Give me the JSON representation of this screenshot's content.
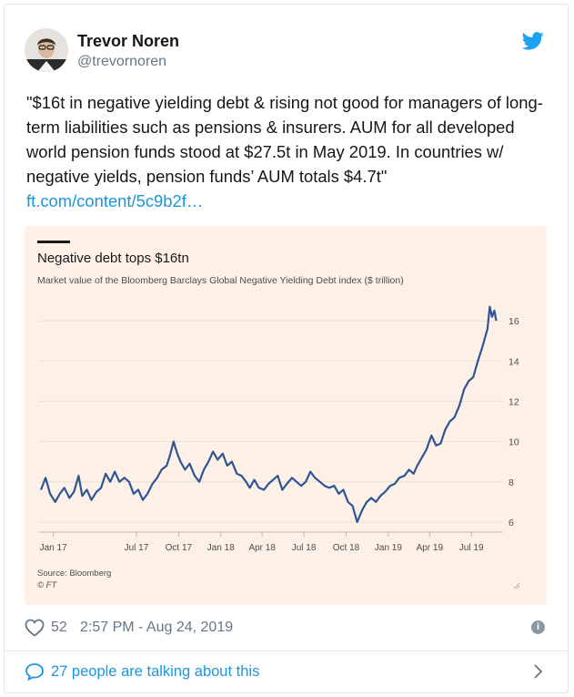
{
  "author": {
    "name": "Trevor Noren",
    "handle": "@trevornoren",
    "avatar_icon": "avatar-photo"
  },
  "tweet": {
    "text": "\"$16t in negative yielding debt & rising not good for managers of long-term liabilities such as pensions & insurers. AUM for all developed world pension funds stood at $27.5t in May 2019. In countries w/ negative yields, pension funds’ AUM totals $4.7t\"",
    "link": "ft.com/content/5c9b2f…"
  },
  "chart_data": {
    "type": "line",
    "title": "Negative debt tops $16tn",
    "subtitle": "Market value of the Bloomberg Barclays Global Negative Yielding Debt index ($ trillion)",
    "x_ticks": [
      "Jan 17",
      "Jul 17",
      "Oct 17",
      "Jan 18",
      "Apr 18",
      "Jul 18",
      "Oct 18",
      "Jan 19",
      "Apr 19",
      "Jul 19"
    ],
    "y_ticks": [
      6,
      8,
      10,
      12,
      14,
      16
    ],
    "ylim": [
      5.5,
      17
    ],
    "xlim": [
      "2016-12-01",
      "2019-08-31"
    ],
    "source": "Source: Bloomberg",
    "credit": "© FT",
    "line_color": "#2f5597",
    "series": [
      {
        "x": [
          "2016-12-05",
          "2016-12-15",
          "2016-12-25",
          "2017-01-05",
          "2017-01-15",
          "2017-01-25",
          "2017-02-05",
          "2017-02-15",
          "2017-02-25",
          "2017-03-05",
          "2017-03-15",
          "2017-03-25",
          "2017-04-05",
          "2017-04-15",
          "2017-04-25",
          "2017-05-05",
          "2017-05-15",
          "2017-05-25",
          "2017-06-05",
          "2017-06-15",
          "2017-06-25",
          "2017-07-05",
          "2017-07-15",
          "2017-07-25",
          "2017-08-05",
          "2017-08-15",
          "2017-08-25",
          "2017-09-05",
          "2017-09-12",
          "2017-09-20",
          "2017-09-28",
          "2017-10-05",
          "2017-10-15",
          "2017-10-25",
          "2017-11-05",
          "2017-11-15",
          "2017-11-25",
          "2017-12-05",
          "2017-12-15",
          "2017-12-25",
          "2018-01-05",
          "2018-01-15",
          "2018-01-25",
          "2018-02-05",
          "2018-02-15",
          "2018-02-25",
          "2018-03-05",
          "2018-03-15",
          "2018-03-25",
          "2018-04-05",
          "2018-04-15",
          "2018-04-25",
          "2018-05-05",
          "2018-05-15",
          "2018-05-25",
          "2018-06-05",
          "2018-06-15",
          "2018-06-25",
          "2018-07-05",
          "2018-07-15",
          "2018-07-25",
          "2018-08-05",
          "2018-08-15",
          "2018-08-25",
          "2018-09-05",
          "2018-09-15",
          "2018-09-25",
          "2018-10-05",
          "2018-10-15",
          "2018-10-25",
          "2018-11-05",
          "2018-11-15",
          "2018-11-25",
          "2018-12-05",
          "2018-12-15",
          "2018-12-25",
          "2019-01-05",
          "2019-01-15",
          "2019-01-25",
          "2019-02-05",
          "2019-02-15",
          "2019-02-25",
          "2019-03-05",
          "2019-03-15",
          "2019-03-25",
          "2019-04-05",
          "2019-04-15",
          "2019-04-25",
          "2019-05-05",
          "2019-05-15",
          "2019-05-25",
          "2019-06-05",
          "2019-06-15",
          "2019-06-25",
          "2019-07-05",
          "2019-07-15",
          "2019-07-25",
          "2019-08-05",
          "2019-08-10",
          "2019-08-15",
          "2019-08-20",
          "2019-08-24"
        ],
        "y": [
          7.6,
          8.2,
          7.4,
          7.0,
          7.4,
          7.7,
          7.2,
          7.5,
          8.3,
          7.3,
          7.6,
          7.1,
          7.5,
          7.7,
          8.4,
          8.0,
          8.5,
          8.0,
          8.2,
          8.0,
          7.4,
          7.6,
          7.1,
          7.4,
          7.9,
          8.2,
          8.6,
          8.8,
          9.3,
          10.0,
          9.4,
          9.0,
          8.6,
          8.9,
          8.3,
          8.0,
          8.6,
          9.0,
          9.5,
          9.1,
          9.4,
          8.8,
          9.0,
          8.4,
          8.3,
          8.0,
          7.7,
          8.1,
          7.7,
          7.6,
          7.9,
          8.1,
          8.3,
          7.6,
          7.9,
          8.2,
          8.0,
          7.8,
          8.0,
          8.5,
          8.2,
          8.0,
          7.8,
          7.7,
          7.8,
          7.4,
          7.6,
          7.0,
          6.8,
          6.0,
          6.6,
          7.0,
          7.2,
          7.0,
          7.3,
          7.5,
          7.8,
          7.9,
          8.2,
          8.3,
          8.6,
          8.4,
          8.8,
          9.2,
          9.6,
          10.3,
          9.8,
          9.9,
          10.6,
          11.0,
          11.2,
          11.8,
          12.6,
          13.0,
          13.2,
          14.0,
          14.7,
          15.6,
          16.7,
          16.2,
          16.5,
          16.0
        ]
      }
    ]
  },
  "stats": {
    "likes": "52",
    "timestamp": "2:57 PM - Aug 24, 2019"
  },
  "conversation": {
    "label": "27 people are talking about this"
  },
  "colors": {
    "accent": "#1b95e0",
    "chart_bg": "#fdf1e7",
    "muted": "#657786"
  }
}
